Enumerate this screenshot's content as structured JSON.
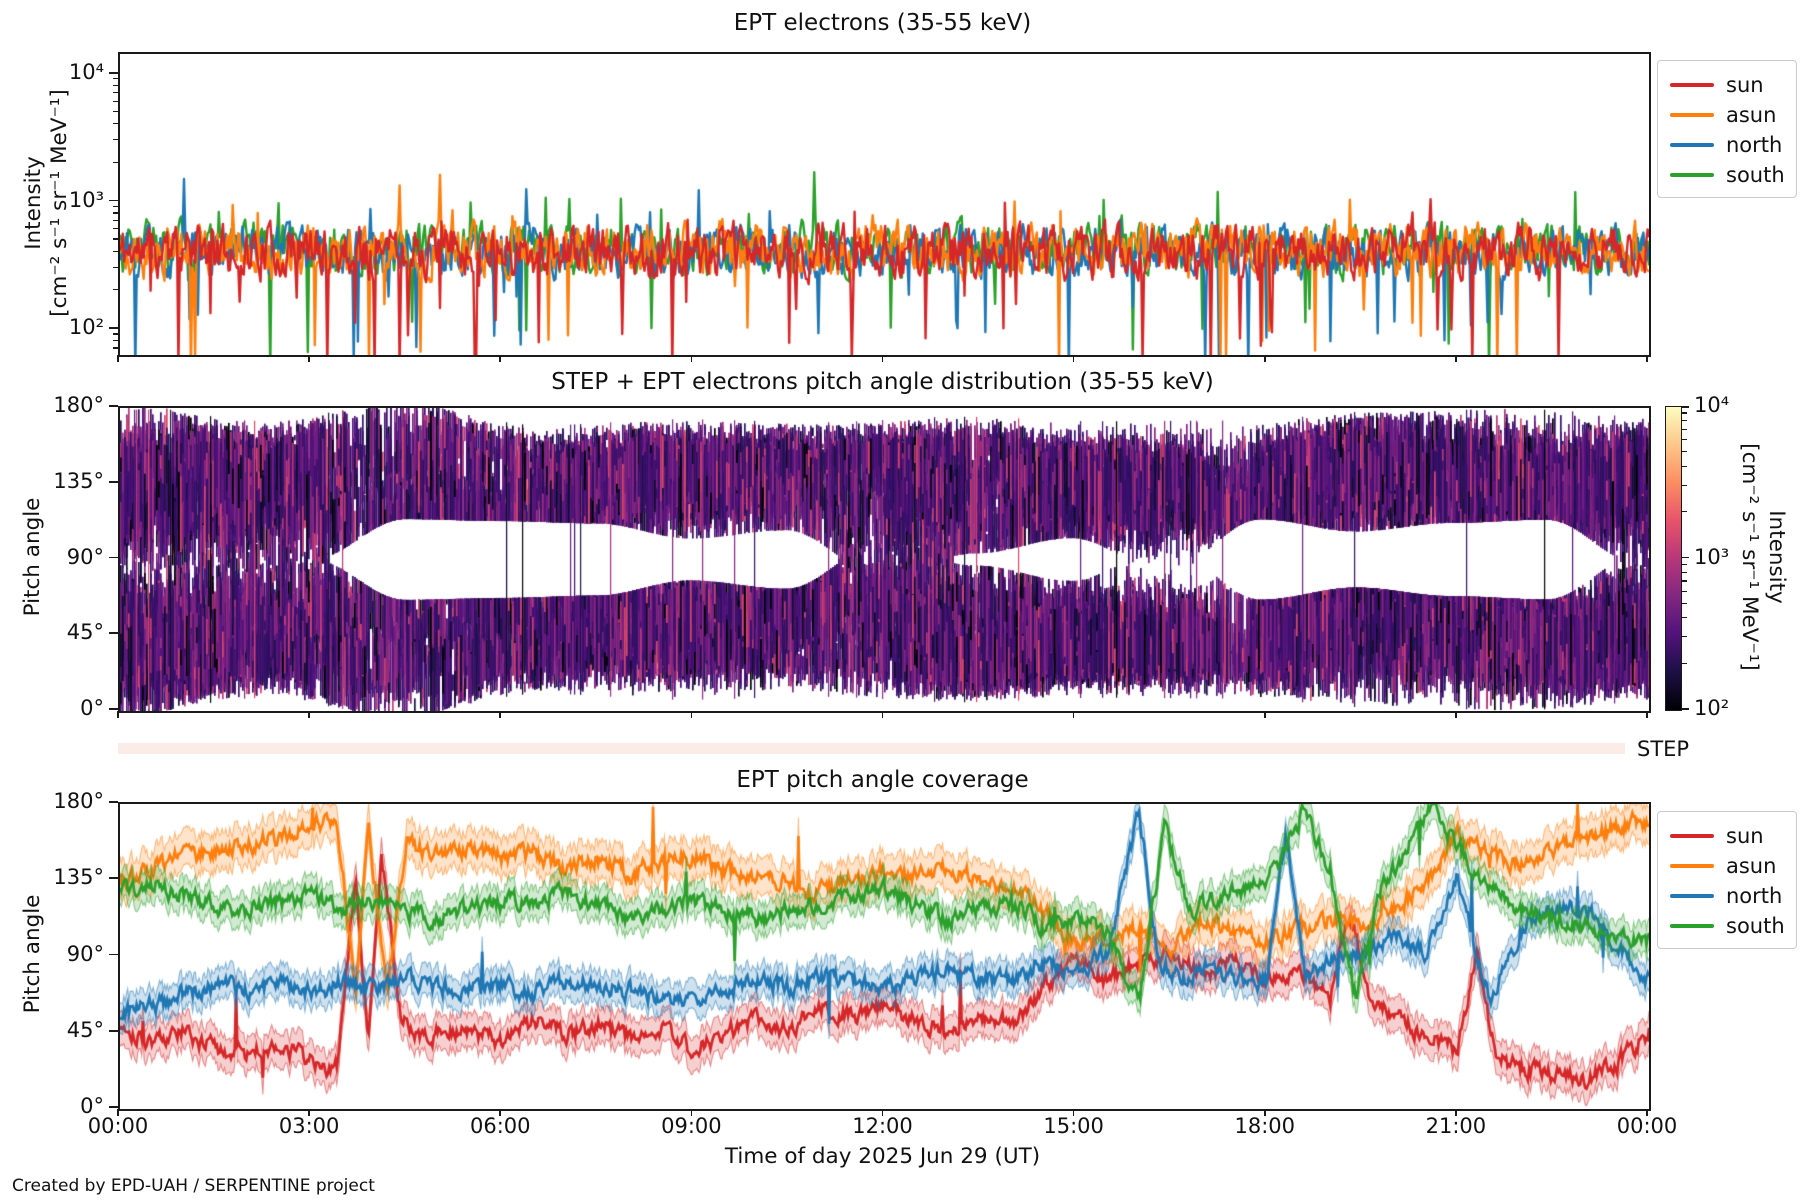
{
  "page": {
    "footer": "Created by EPD-UAH / SERPENTINE project",
    "background": "#ffffff"
  },
  "xaxis": {
    "label": "Time of day 2025 Jun 29 (UT)",
    "tick_labels": [
      "00:00",
      "03:00",
      "06:00",
      "09:00",
      "12:00",
      "15:00",
      "18:00",
      "21:00",
      "00:00"
    ]
  },
  "panel1": {
    "title": "EPT electrons (35-55 keV)",
    "ylabel": "Intensity",
    "ylabel_units": "[cm⁻² s⁻¹ sr⁻¹ MeV⁻¹]",
    "y_tick_labels": [
      "10⁴",
      "10³",
      "10²"
    ],
    "legend": [
      {
        "label": "sun",
        "color": "#d62728"
      },
      {
        "label": "asun",
        "color": "#ff7f0e"
      },
      {
        "label": "north",
        "color": "#1f77b4"
      },
      {
        "label": "south",
        "color": "#2ca02c"
      }
    ]
  },
  "panel2": {
    "title": "STEP + EPT electrons pitch angle distribution (35-55 keV)",
    "ylabel": "Pitch angle",
    "y_tick_labels": [
      "180°",
      "135°",
      "90°",
      "45°",
      "0°"
    ],
    "step_label": "STEP",
    "step_band_color": "#fcece7",
    "colorbar": {
      "tick_labels": [
        "10⁴",
        "10³",
        "10²"
      ],
      "label": "Intensity",
      "label_units": "[cm⁻² s⁻¹ sr⁻¹ MeV⁻¹]",
      "colormap": "magma",
      "gradient_stops": [
        "#000004",
        "#1c1044",
        "#51127c",
        "#822681",
        "#b73779",
        "#e8536a",
        "#fb8d61",
        "#fec68a",
        "#fcfdbf"
      ]
    }
  },
  "panel3": {
    "title": "EPT pitch angle coverage",
    "ylabel": "Pitch angle",
    "y_tick_labels": [
      "180°",
      "135°",
      "90°",
      "45°",
      "0°"
    ],
    "legend": [
      {
        "label": "sun",
        "color": "#d62728"
      },
      {
        "label": "asun",
        "color": "#ff7f0e"
      },
      {
        "label": "north",
        "color": "#1f77b4"
      },
      {
        "label": "south",
        "color": "#2ca02c"
      }
    ]
  },
  "chart_data": [
    {
      "type": "line",
      "title": "EPT electrons (35-55 keV)",
      "x_range_hours": [
        0,
        24
      ],
      "y_scale": "log",
      "ylim": [
        64,
        14500
      ],
      "ylabel": "Intensity [cm⁻² s⁻¹ sr⁻¹ MeV⁻¹]",
      "legend_position": "outside-right",
      "description": "Four densely fluctuating time series around ~400 cm-2 s-1 sr-1 MeV-1 with dips to ~70 and spikes to ~1150",
      "draw_order": [
        "south",
        "north",
        "asun",
        "sun"
      ],
      "series": [
        {
          "name": "sun",
          "color": "#d62728",
          "baseline_dex": 2.62,
          "noise_dex": 0.17,
          "dip_prob": 0.03,
          "dip_dex": [
            0.3,
            1.0
          ],
          "spike_prob": 0.012,
          "spike_dex": [
            0.12,
            0.32
          ]
        },
        {
          "name": "asun",
          "color": "#ff7f0e",
          "baseline_dex": 2.63,
          "noise_dex": 0.17,
          "dip_prob": 0.026,
          "dip_dex": [
            0.3,
            1.0
          ],
          "spike_prob": 0.014,
          "spike_dex": [
            0.12,
            0.38
          ]
        },
        {
          "name": "north",
          "color": "#1f77b4",
          "baseline_dex": 2.62,
          "noise_dex": 0.16,
          "dip_prob": 0.024,
          "dip_dex": [
            0.3,
            0.9
          ],
          "spike_prob": 0.012,
          "spike_dex": [
            0.12,
            0.4
          ]
        },
        {
          "name": "south",
          "color": "#2ca02c",
          "baseline_dex": 2.64,
          "noise_dex": 0.16,
          "dip_prob": 0.022,
          "dip_dex": [
            0.3,
            0.9
          ],
          "spike_prob": 0.018,
          "spike_dex": [
            0.15,
            0.45
          ]
        }
      ]
    },
    {
      "type": "heatmap",
      "title": "STEP + EPT electrons pitch angle distribution (35-55 keV)",
      "x_range_hours": [
        0,
        24
      ],
      "y_range_deg": [
        0,
        180
      ],
      "color_scale": "log",
      "clim": [
        100,
        10000
      ],
      "colormap": "magma",
      "seed": 7,
      "structure": {
        "bands_deg": [
          [
            10,
            80
          ],
          [
            100,
            170
          ]
        ],
        "gap_center_deg": 90,
        "gap_halfwidth_deg_range": [
          0,
          32
        ],
        "edge_margin_deg_range": [
          0,
          26
        ],
        "white_hole_centers_deg": [
          45,
          135
        ],
        "typical_intensity_range": [
          150,
          1200
        ]
      },
      "palette": {
        "dark": [
          "#000004",
          "#0d0b2a",
          "#120d32",
          "#1d1147"
        ],
        "mid": [
          "#2c115f",
          "#331067",
          "#3b0f70",
          "#43106e",
          "#51127c",
          "#5f187f",
          "#721f81",
          "#822681"
        ],
        "bright": [
          "#8c2981",
          "#932b80",
          "#a3307e",
          "#b73779",
          "#c83e73",
          "#d8456c"
        ]
      }
    },
    {
      "type": "line",
      "title": "EPT pitch angle coverage",
      "x_range_hours": [
        0,
        24
      ],
      "ylim_deg": [
        0,
        180
      ],
      "legend_position": "outside-right",
      "description": "Mean pitch angle pointing of the four EPT telescopes with shaded aperture bands",
      "draw_order": [
        "sun",
        "asun",
        "north",
        "south"
      ],
      "series": [
        {
          "name": "sun",
          "color": "#d62728",
          "band_halfwidth_deg": 10,
          "keypoints_h_deg": [
            [
              0,
              50
            ],
            [
              0.5,
              40
            ],
            [
              1,
              45
            ],
            [
              1.5,
              35
            ],
            [
              2,
              32
            ],
            [
              2.5,
              38
            ],
            [
              3,
              28
            ],
            [
              3.4,
              24
            ],
            [
              3.7,
              140
            ],
            [
              3.9,
              40
            ],
            [
              4.1,
              150
            ],
            [
              4.4,
              55
            ],
            [
              4.8,
              42
            ],
            [
              5.3,
              48
            ],
            [
              6,
              40
            ],
            [
              6.5,
              52
            ],
            [
              7,
              44
            ],
            [
              7.5,
              50
            ],
            [
              8,
              42
            ],
            [
              8.5,
              48
            ],
            [
              9,
              34
            ],
            [
              9.5,
              44
            ],
            [
              10,
              54
            ],
            [
              10.5,
              46
            ],
            [
              11,
              62
            ],
            [
              11.5,
              54
            ],
            [
              12,
              60
            ],
            [
              12.5,
              52
            ],
            [
              13,
              46
            ],
            [
              13.5,
              56
            ],
            [
              14,
              50
            ],
            [
              14.5,
              72
            ],
            [
              15,
              88
            ],
            [
              15.5,
              74
            ],
            [
              16,
              88
            ],
            [
              16.5,
              92
            ],
            [
              17,
              80
            ],
            [
              17.5,
              86
            ],
            [
              18,
              76
            ],
            [
              18.5,
              82
            ],
            [
              19,
              64
            ],
            [
              19.3,
              118
            ],
            [
              19.6,
              68
            ],
            [
              20,
              54
            ],
            [
              20.5,
              44
            ],
            [
              21,
              34
            ],
            [
              21.3,
              92
            ],
            [
              21.6,
              30
            ],
            [
              22,
              24
            ],
            [
              22.5,
              20
            ],
            [
              23,
              18
            ],
            [
              23.5,
              26
            ],
            [
              24,
              46
            ]
          ]
        },
        {
          "name": "asun",
          "color": "#ff7f0e",
          "band_halfwidth_deg": 11,
          "keypoints_h_deg": [
            [
              0,
              134
            ],
            [
              0.5,
              142
            ],
            [
              1,
              150
            ],
            [
              1.5,
              152
            ],
            [
              2,
              156
            ],
            [
              2.5,
              160
            ],
            [
              3,
              167
            ],
            [
              3.4,
              172
            ],
            [
              3.7,
              70
            ],
            [
              3.9,
              164
            ],
            [
              4.2,
              74
            ],
            [
              4.5,
              158
            ],
            [
              5,
              150
            ],
            [
              5.5,
              154
            ],
            [
              6,
              148
            ],
            [
              6.5,
              151
            ],
            [
              7,
              142
            ],
            [
              7.5,
              148
            ],
            [
              8,
              138
            ],
            [
              8.5,
              146
            ],
            [
              9,
              150
            ],
            [
              9.5,
              140
            ],
            [
              10,
              137
            ],
            [
              10.5,
              132
            ],
            [
              11,
              128
            ],
            [
              11.5,
              136
            ],
            [
              12,
              141
            ],
            [
              12.5,
              138
            ],
            [
              13,
              143
            ],
            [
              13.5,
              134
            ],
            [
              14,
              129
            ],
            [
              14.5,
              118
            ],
            [
              15,
              96
            ],
            [
              15.5,
              102
            ],
            [
              16,
              106
            ],
            [
              16.5,
              96
            ],
            [
              17,
              112
            ],
            [
              17.5,
              104
            ],
            [
              18,
              98
            ],
            [
              18.5,
              106
            ],
            [
              19,
              112
            ],
            [
              19.5,
              108
            ],
            [
              20,
              118
            ],
            [
              20.5,
              132
            ],
            [
              21,
              162
            ],
            [
              21.5,
              150
            ],
            [
              22,
              144
            ],
            [
              22.5,
              154
            ],
            [
              23,
              160
            ],
            [
              23.5,
              166
            ],
            [
              24,
              171
            ]
          ]
        },
        {
          "name": "north",
          "color": "#1f77b4",
          "band_halfwidth_deg": 9,
          "keypoints_h_deg": [
            [
              0,
              55
            ],
            [
              0.5,
              60
            ],
            [
              1,
              68
            ],
            [
              1.5,
              72
            ],
            [
              2,
              70
            ],
            [
              2.5,
              73
            ],
            [
              3,
              68
            ],
            [
              3.5,
              76
            ],
            [
              4,
              70
            ],
            [
              4.5,
              78
            ],
            [
              5,
              72
            ],
            [
              5.5,
              70
            ],
            [
              6,
              73
            ],
            [
              6.5,
              68
            ],
            [
              7,
              76
            ],
            [
              7.5,
              72
            ],
            [
              8,
              70
            ],
            [
              8.5,
              65
            ],
            [
              9,
              62
            ],
            [
              9.5,
              70
            ],
            [
              10,
              76
            ],
            [
              10.5,
              72
            ],
            [
              11,
              79
            ],
            [
              11.5,
              75
            ],
            [
              12,
              72
            ],
            [
              12.5,
              78
            ],
            [
              13,
              81
            ],
            [
              13.5,
              78
            ],
            [
              14,
              75
            ],
            [
              14.5,
              86
            ],
            [
              15,
              80
            ],
            [
              15.5,
              92
            ],
            [
              16,
              176
            ],
            [
              16.3,
              86
            ],
            [
              16.7,
              76
            ],
            [
              17,
              83
            ],
            [
              17.5,
              78
            ],
            [
              18,
              75
            ],
            [
              18.3,
              166
            ],
            [
              18.6,
              80
            ],
            [
              19,
              86
            ],
            [
              19.5,
              92
            ],
            [
              20,
              102
            ],
            [
              20.5,
              92
            ],
            [
              21,
              136
            ],
            [
              21.5,
              64
            ],
            [
              22,
              106
            ],
            [
              22.5,
              116
            ],
            [
              23,
              121
            ],
            [
              23.5,
              96
            ],
            [
              24,
              76
            ]
          ]
        },
        {
          "name": "south",
          "color": "#2ca02c",
          "band_halfwidth_deg": 9,
          "keypoints_h_deg": [
            [
              0,
              128
            ],
            [
              0.5,
              133
            ],
            [
              1,
              126
            ],
            [
              1.5,
              120
            ],
            [
              2,
              118
            ],
            [
              2.5,
              123
            ],
            [
              3,
              126
            ],
            [
              3.5,
              118
            ],
            [
              4,
              122
            ],
            [
              4.5,
              115
            ],
            [
              5,
              112
            ],
            [
              5.5,
              118
            ],
            [
              6,
              121
            ],
            [
              6.5,
              123
            ],
            [
              7,
              127
            ],
            [
              7.5,
              120
            ],
            [
              8,
              114
            ],
            [
              8.5,
              119
            ],
            [
              9,
              123
            ],
            [
              9.5,
              116
            ],
            [
              10,
              112
            ],
            [
              10.5,
              118
            ],
            [
              11,
              122
            ],
            [
              11.5,
              126
            ],
            [
              12,
              129
            ],
            [
              12.5,
              120
            ],
            [
              13,
              112
            ],
            [
              13.5,
              118
            ],
            [
              14,
              122
            ],
            [
              14.5,
              108
            ],
            [
              15,
              113
            ],
            [
              15.5,
              104
            ],
            [
              16,
              62
            ],
            [
              16.4,
              168
            ],
            [
              16.8,
              116
            ],
            [
              17,
              122
            ],
            [
              17.5,
              128
            ],
            [
              18,
              133
            ],
            [
              18.6,
              177
            ],
            [
              19,
              141
            ],
            [
              19.4,
              66
            ],
            [
              19.8,
              131
            ],
            [
              20,
              141
            ],
            [
              20.6,
              179
            ],
            [
              21,
              154
            ],
            [
              21.5,
              131
            ],
            [
              22,
              118
            ],
            [
              22.5,
              112
            ],
            [
              23,
              108
            ],
            [
              23.5,
              101
            ],
            [
              24,
              98
            ]
          ]
        }
      ]
    }
  ]
}
